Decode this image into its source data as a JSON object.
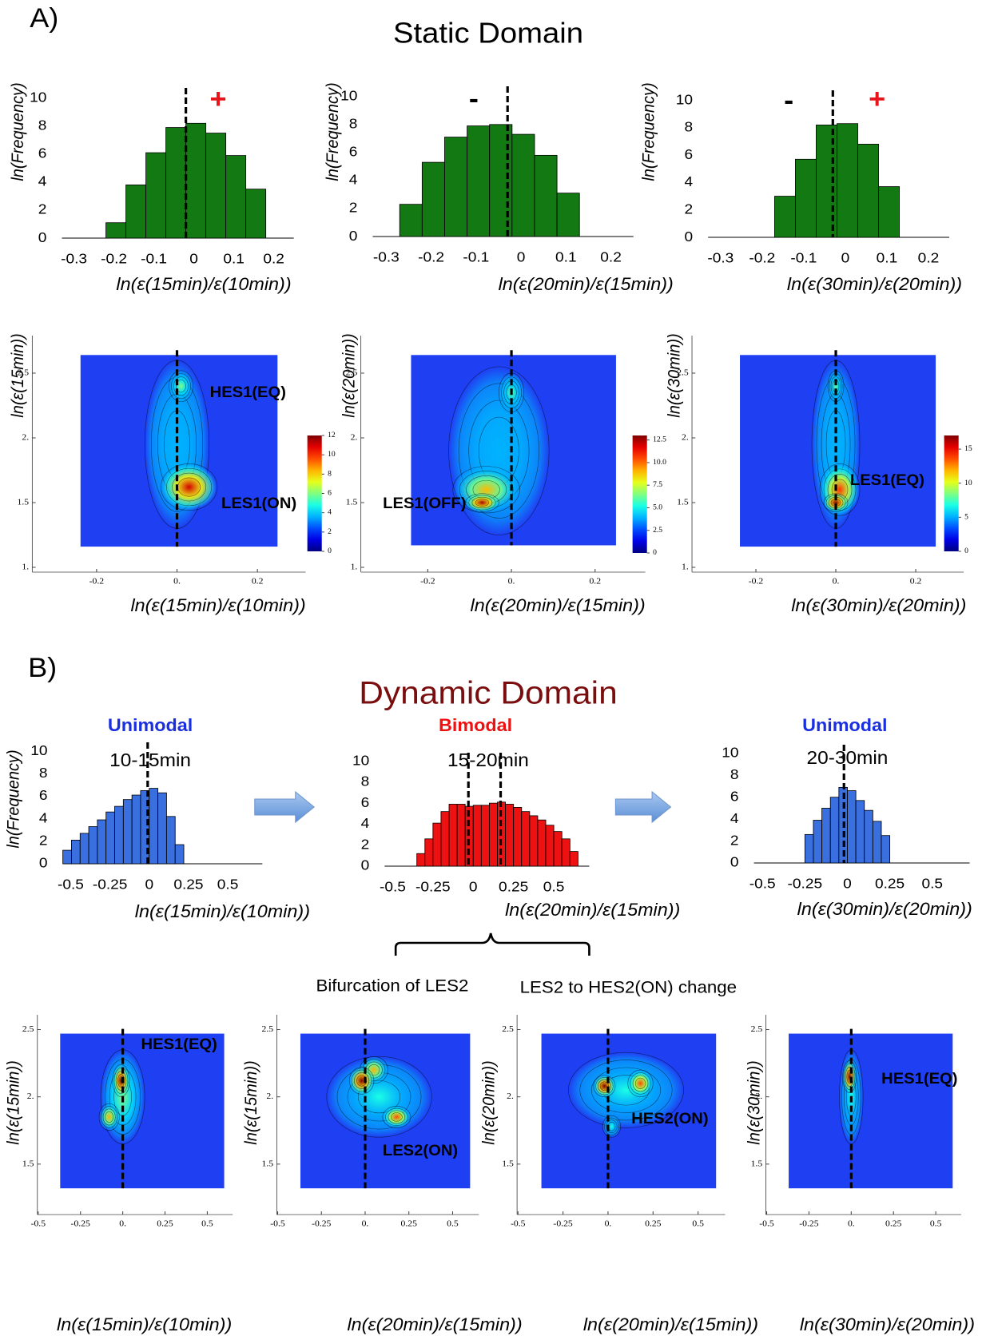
{
  "figure": {
    "panel_a": "A)",
    "title_a": "Static Domain",
    "panel_b": "B)",
    "title_b": "Dynamic Domain",
    "bracket_left": "Bifurcation of LES2",
    "bracket_right": "LES2 to HES2(ON) change"
  },
  "chart_data": [
    {
      "type": "histogram",
      "color": "#137a13",
      "bins": [
        -0.22,
        -0.17,
        -0.12,
        -0.07,
        -0.02,
        0.03,
        0.08,
        0.13,
        0.18
      ],
      "values": [
        1.1,
        3.8,
        6.1,
        7.9,
        8.2,
        7.5,
        5.9,
        3.5
      ],
      "xlim": [
        -0.33,
        0.25
      ],
      "xticks": [
        -0.3,
        -0.2,
        -0.1,
        0,
        0.1,
        0.2
      ],
      "ylim": [
        0,
        10.5
      ],
      "yticks": [
        0,
        2,
        4,
        6,
        8,
        10
      ],
      "y_label": "ln(Frequency)",
      "x_label": "ln(ε(15min)/ε(10min))",
      "vlines": [
        -0.02
      ],
      "annotations": [
        {
          "text": "+",
          "color": "#e8141b"
        }
      ]
    },
    {
      "type": "histogram",
      "color": "#137a13",
      "bins": [
        -0.27,
        -0.22,
        -0.17,
        -0.12,
        -0.07,
        -0.02,
        0.03,
        0.08,
        0.13
      ],
      "values": [
        2.3,
        5.3,
        7.1,
        7.9,
        8.0,
        7.3,
        5.8,
        3.1
      ],
      "xlim": [
        -0.33,
        0.25
      ],
      "xticks": [
        -0.3,
        -0.2,
        -0.1,
        0,
        0.1,
        0.2
      ],
      "ylim": [
        0,
        10.5
      ],
      "yticks": [
        0,
        2,
        4,
        6,
        8,
        10
      ],
      "y_label": "ln(Frequency)",
      "x_label": "ln(ε(20min)/ε(15min))",
      "vlines": [
        -0.03
      ],
      "annotations": [
        {
          "text": "-",
          "color": "#000000"
        }
      ]
    },
    {
      "type": "histogram",
      "color": "#137a13",
      "bins": [
        -0.17,
        -0.12,
        -0.07,
        -0.02,
        0.03,
        0.08,
        0.13
      ],
      "values": [
        3.0,
        5.7,
        8.2,
        8.3,
        6.8,
        3.7
      ],
      "xlim": [
        -0.33,
        0.25
      ],
      "xticks": [
        -0.3,
        -0.2,
        -0.1,
        0,
        0.1,
        0.2
      ],
      "ylim": [
        0,
        10.5
      ],
      "yticks": [
        0,
        2,
        4,
        6,
        8,
        10
      ],
      "y_label": "ln(Frequency)",
      "x_label": "ln(ε(30min)/ε(20min))",
      "vlines": [
        -0.03
      ],
      "annotations": [
        {
          "text": "-",
          "color": "#000000"
        },
        {
          "text": "+",
          "color": "#e8141b"
        }
      ]
    },
    {
      "type": "density",
      "xlim": [
        -0.36,
        0.32
      ],
      "xticks": [
        -0.2,
        {
          "value": 0,
          "label": "0."
        },
        0.2
      ],
      "ylim": [
        0.963,
        2.79
      ],
      "yticks": [
        {
          "value": 1,
          "label": "1."
        },
        1.5,
        {
          "value": 2,
          "label": "2."
        },
        2.5
      ],
      "y_label": "ln(ε(15min))",
      "x_label": "ln(ε(15min)/ε(10min))",
      "extent": {
        "x": [
          -0.24,
          0.25
        ],
        "y": [
          1.16,
          2.64
        ]
      },
      "vlines": [
        0
      ],
      "zlim": [
        0,
        12
      ],
      "colorbar_ticks": [
        0,
        2,
        4,
        6,
        8,
        10,
        12
      ],
      "regions": [
        {
          "x": 0,
          "y": 1.95,
          "rx": 0.08,
          "ry": 0.65,
          "peak": 3
        },
        {
          "x": 0.01,
          "y": 2.4,
          "rx": 0.03,
          "ry": 0.12,
          "peak": 6
        },
        {
          "x": 0.03,
          "y": 1.62,
          "rx": 0.07,
          "ry": 0.18,
          "peak": 11
        }
      ],
      "annotations": [
        {
          "text": "HES1(EQ)"
        },
        {
          "text": "LES1(ON)"
        }
      ]
    },
    {
      "type": "density",
      "xlim": [
        -0.36,
        0.32
      ],
      "xticks": [
        -0.2,
        {
          "value": 0,
          "label": "0."
        },
        0.2
      ],
      "ylim": [
        0.963,
        2.79
      ],
      "yticks": [
        {
          "value": 1,
          "label": "1."
        },
        1.5,
        {
          "value": 2,
          "label": "2."
        },
        2.5
      ],
      "y_label": "ln(ε(20min))",
      "x_label": "ln(ε(20min)/ε(15min))",
      "extent": {
        "x": [
          -0.24,
          0.25
        ],
        "y": [
          1.17,
          2.64
        ]
      },
      "vlines": [
        0
      ],
      "zlim": [
        0,
        13
      ],
      "colorbar_ticks": [
        0,
        2.5,
        {
          "value": 5,
          "label": "5.0"
        },
        7.5,
        {
          "value": 10,
          "label": "10.0"
        },
        12.5
      ],
      "regions": [
        {
          "x": -0.03,
          "y": 1.9,
          "rx": 0.12,
          "ry": 0.65,
          "peak": 3
        },
        {
          "x": 0,
          "y": 2.35,
          "rx": 0.03,
          "ry": 0.15,
          "peak": 6
        },
        {
          "x": -0.06,
          "y": 1.6,
          "rx": 0.08,
          "ry": 0.18,
          "peak": 9
        },
        {
          "x": -0.07,
          "y": 1.5,
          "rx": 0.04,
          "ry": 0.07,
          "peak": 12.5
        }
      ],
      "annotations": [
        {
          "text": "LES1(OFF)"
        }
      ]
    },
    {
      "type": "density",
      "xlim": [
        -0.36,
        0.32
      ],
      "xticks": [
        -0.2,
        {
          "value": 0,
          "label": "0."
        },
        0.2
      ],
      "ylim": [
        0.963,
        2.79
      ],
      "yticks": [
        {
          "value": 1,
          "label": "1."
        },
        1.5,
        {
          "value": 2,
          "label": "2."
        },
        2.5
      ],
      "y_label": "ln(ε(30min))",
      "x_label": "ln(ε(30min)/ε(20min))",
      "extent": {
        "x": [
          -0.24,
          0.25
        ],
        "y": [
          1.16,
          2.64
        ]
      },
      "vlines": [
        0
      ],
      "zlim": [
        0,
        17
      ],
      "colorbar_ticks": [
        0,
        5,
        10,
        15
      ],
      "regions": [
        {
          "x": 0,
          "y": 1.95,
          "rx": 0.06,
          "ry": 0.65,
          "peak": 4
        },
        {
          "x": 0,
          "y": 2.4,
          "rx": 0.02,
          "ry": 0.12,
          "peak": 8
        },
        {
          "x": 0.01,
          "y": 1.6,
          "rx": 0.05,
          "ry": 0.2,
          "peak": 14
        },
        {
          "x": 0,
          "y": 1.5,
          "rx": 0.03,
          "ry": 0.07,
          "peak": 17
        }
      ],
      "annotations": [
        {
          "text": "LES1(EQ)"
        }
      ]
    },
    {
      "type": "histogram",
      "title": "Unimodal",
      "title_color": "#1a2fe0",
      "subtitle": "10-15min",
      "color": "#3a6fe0",
      "bins": [
        -0.55,
        -0.495,
        -0.44,
        -0.385,
        -0.33,
        -0.275,
        -0.22,
        -0.165,
        -0.11,
        -0.055,
        0,
        0.055,
        0.11,
        0.165,
        0.22
      ],
      "values": [
        1.2,
        2.1,
        2.7,
        3.3,
        3.9,
        4.6,
        5.1,
        5.7,
        6.1,
        6.5,
        6.7,
        6.3,
        4.2,
        1.7
      ],
      "xlim": [
        -0.55,
        0.72
      ],
      "xticks": [
        -0.5,
        -0.25,
        0,
        0.25,
        0.5
      ],
      "ylim": [
        0,
        10.5
      ],
      "yticks": [
        0,
        2,
        4,
        6,
        8,
        10
      ],
      "y_label": "ln(Frequency)",
      "x_label": "ln(ε(15min)/ε(10min))",
      "vlines": [
        -0.01
      ]
    },
    {
      "type": "histogram",
      "title": "Bimodal",
      "title_color": "#ee1111",
      "subtitle": "15-20min",
      "color": "#ee1111",
      "bins": [
        -0.35,
        -0.3,
        -0.25,
        -0.2,
        -0.15,
        -0.1,
        -0.05,
        0,
        0.05,
        0.1,
        0.15,
        0.2,
        0.25,
        0.3,
        0.35,
        0.4,
        0.45,
        0.5,
        0.55,
        0.6,
        0.65
      ],
      "values": [
        1.2,
        2.6,
        4.1,
        5.2,
        5.9,
        5.9,
        5.7,
        5.8,
        5.8,
        6.0,
        6.1,
        5.9,
        5.6,
        5.2,
        4.8,
        4.4,
        3.9,
        3.3,
        2.6,
        1.4
      ],
      "xlim": [
        -0.55,
        0.72
      ],
      "xticks": [
        -0.5,
        -0.25,
        0,
        0.25,
        0.5
      ],
      "ylim": [
        0,
        10.5
      ],
      "yticks": [
        0,
        2,
        4,
        6,
        8,
        10
      ],
      "x_label": "ln(ε(20min)/ε(15min))",
      "vlines": [
        -0.03,
        0.17
      ]
    },
    {
      "type": "histogram",
      "title": "Unimodal",
      "title_color": "#1a2fe0",
      "subtitle": "20-30min",
      "color": "#3a6fe0",
      "bins": [
        -0.25,
        -0.2,
        -0.15,
        -0.1,
        -0.05,
        0,
        0.05,
        0.1,
        0.15,
        0.2,
        0.25
      ],
      "values": [
        2.6,
        3.9,
        5.0,
        6.0,
        6.9,
        6.6,
        5.7,
        4.8,
        3.8,
        2.5
      ],
      "xlim": [
        -0.55,
        0.72
      ],
      "xticks": [
        -0.5,
        -0.25,
        0,
        0.25,
        0.5
      ],
      "ylim": [
        0,
        10.5
      ],
      "yticks": [
        0,
        2,
        4,
        6,
        8,
        10
      ],
      "x_label": "ln(ε(30min)/ε(20min))",
      "vlines": [
        -0.02
      ]
    },
    {
      "type": "density",
      "xlim": [
        -0.505,
        0.65
      ],
      "xticks": [
        -0.5,
        -0.25,
        {
          "value": 0,
          "label": "0."
        },
        0.25,
        0.5
      ],
      "ylim": [
        1.125,
        2.61
      ],
      "yticks": [
        1.5,
        {
          "value": 2,
          "label": "2."
        },
        2.5
      ],
      "y_label": "ln(ε(15min))",
      "x_label": "ln(ε(15min)/ε(10min))",
      "extent": {
        "x": [
          -0.37,
          0.6
        ],
        "y": [
          1.32,
          2.47
        ]
      },
      "vlines": [
        0
      ],
      "zlim": [
        0,
        10
      ],
      "regions": [
        {
          "x": 0,
          "y": 2.0,
          "rx": 0.13,
          "ry": 0.35,
          "peak": 5
        },
        {
          "x": -0.01,
          "y": 2.12,
          "rx": 0.05,
          "ry": 0.12,
          "peak": 10
        },
        {
          "x": -0.08,
          "y": 1.85,
          "rx": 0.06,
          "ry": 0.1,
          "peak": 7
        }
      ],
      "annotations": [
        {
          "text": "HES1(EQ)"
        }
      ]
    },
    {
      "type": "density",
      "xlim": [
        -0.505,
        0.65
      ],
      "xticks": [
        -0.5,
        -0.25,
        {
          "value": 0,
          "label": "0."
        },
        0.25,
        0.5
      ],
      "ylim": [
        1.125,
        2.61
      ],
      "yticks": [
        1.5,
        {
          "value": 2,
          "label": "2."
        },
        2.5
      ],
      "y_label": "ln(ε(15min))",
      "x_label": "ln(ε(20min)/ε(15min))",
      "extent": {
        "x": [
          -0.37,
          0.6
        ],
        "y": [
          1.32,
          2.47
        ]
      },
      "vlines": [
        0
      ],
      "zlim": [
        0,
        10
      ],
      "regions": [
        {
          "x": 0.08,
          "y": 2.0,
          "rx": 0.3,
          "ry": 0.3,
          "peak": 4
        },
        {
          "x": 0.05,
          "y": 2.2,
          "rx": 0.08,
          "ry": 0.1,
          "peak": 7
        },
        {
          "x": 0.18,
          "y": 1.85,
          "rx": 0.08,
          "ry": 0.08,
          "peak": 8
        },
        {
          "x": -0.02,
          "y": 2.12,
          "rx": 0.07,
          "ry": 0.1,
          "peak": 10
        }
      ],
      "annotations": [
        {
          "text": "LES2(ON)"
        }
      ]
    },
    {
      "type": "density",
      "xlim": [
        -0.505,
        0.65
      ],
      "xticks": [
        -0.5,
        -0.25,
        {
          "value": 0,
          "label": "0."
        },
        0.25,
        0.5
      ],
      "ylim": [
        1.125,
        2.61
      ],
      "yticks": [
        1.5,
        {
          "value": 2,
          "label": "2."
        },
        2.5
      ],
      "y_label": "ln(ε(20min))",
      "x_label": "ln(ε(20min)/ε(15min))",
      "extent": {
        "x": [
          -0.37,
          0.6
        ],
        "y": [
          1.32,
          2.47
        ]
      },
      "vlines": [
        0
      ],
      "zlim": [
        0,
        10
      ],
      "regions": [
        {
          "x": 0.1,
          "y": 2.05,
          "rx": 0.32,
          "ry": 0.28,
          "peak": 4
        },
        {
          "x": 0.02,
          "y": 1.78,
          "rx": 0.05,
          "ry": 0.08,
          "peak": 4
        },
        {
          "x": 0.18,
          "y": 2.1,
          "rx": 0.07,
          "ry": 0.1,
          "peak": 8
        },
        {
          "x": -0.02,
          "y": 2.08,
          "rx": 0.06,
          "ry": 0.08,
          "peak": 10
        }
      ],
      "annotations": [
        {
          "text": "HES2(ON)"
        }
      ]
    },
    {
      "type": "density",
      "xlim": [
        -0.505,
        0.65
      ],
      "xticks": [
        -0.5,
        -0.25,
        {
          "value": 0,
          "label": "0."
        },
        0.25,
        0.5
      ],
      "ylim": [
        1.125,
        2.61
      ],
      "yticks": [
        1.5,
        {
          "value": 2,
          "label": "2."
        },
        2.5
      ],
      "y_label": "ln(ε(30min))",
      "x_label": "ln(ε(30min)/ε(20min))",
      "extent": {
        "x": [
          -0.37,
          0.6
        ],
        "y": [
          1.32,
          2.47
        ]
      },
      "vlines": [
        0
      ],
      "zlim": [
        0,
        10
      ],
      "regions": [
        {
          "x": 0,
          "y": 2.0,
          "rx": 0.07,
          "ry": 0.35,
          "peak": 4
        },
        {
          "x": -0.01,
          "y": 2.15,
          "rx": 0.04,
          "ry": 0.12,
          "peak": 10
        }
      ],
      "annotations": [
        {
          "text": "HES1(EQ)"
        }
      ]
    }
  ]
}
